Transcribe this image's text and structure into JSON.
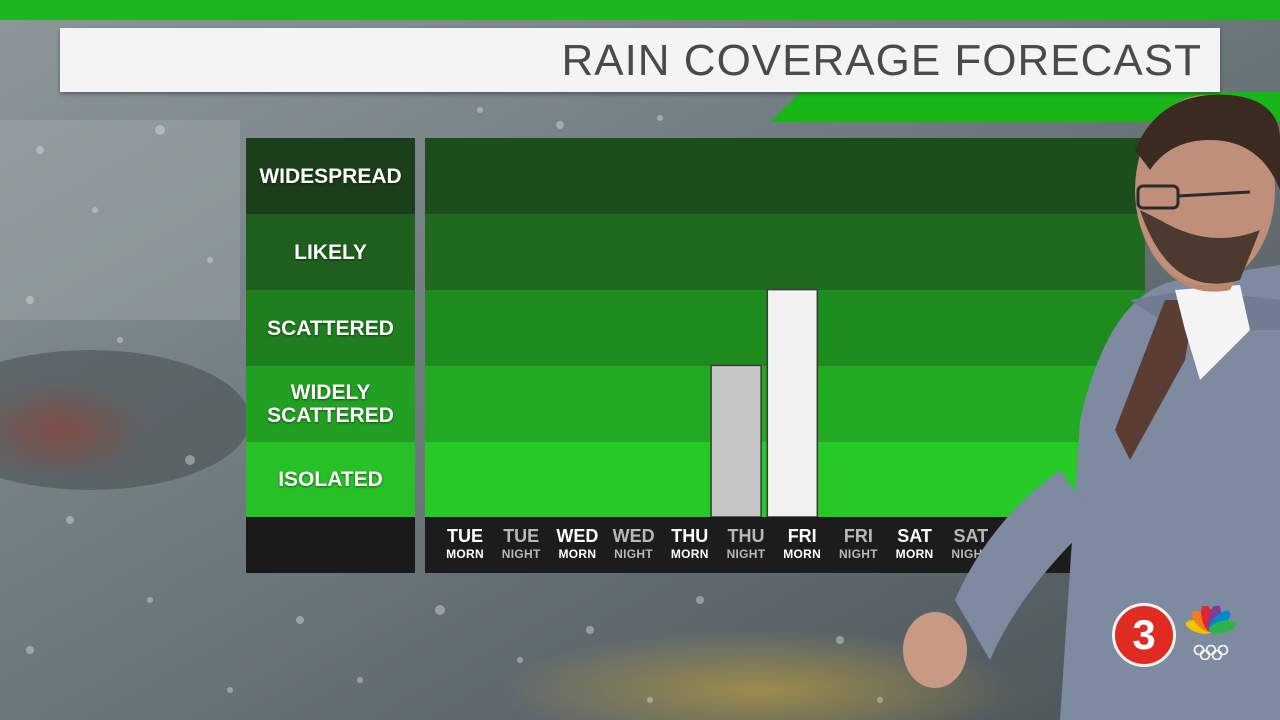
{
  "banner": {
    "title": "RAIN COVERAGE FORECAST"
  },
  "colors": {
    "accent_green": "#1fb51f",
    "band_widespread": "#1c4d1c",
    "band_likely": "#1f6a1f",
    "band_scattered": "#1e8b1e",
    "band_widely_scattered": "#22aa22",
    "band_isolated": "#27c927",
    "bar_thu_night": "#c6c6c6",
    "bar_fri_morn": "#f2f2f2",
    "logo_red": "#e02b22"
  },
  "chart_data": {
    "type": "bar",
    "title": "RAIN COVERAGE FORECAST",
    "levels": [
      "ISOLATED",
      "WIDELY SCATTERED",
      "SCATTERED",
      "LIKELY",
      "WIDESPREAD"
    ],
    "y_labels": [
      {
        "line1": "WIDESPREAD",
        "line2": ""
      },
      {
        "line1": "LIKELY",
        "line2": ""
      },
      {
        "line1": "SCATTERED",
        "line2": ""
      },
      {
        "line1": "WIDELY",
        "line2": "SCATTERED"
      },
      {
        "line1": "ISOLATED",
        "line2": ""
      }
    ],
    "ylim": [
      0,
      5
    ],
    "categories": [
      {
        "day": "TUE",
        "part": "MORN"
      },
      {
        "day": "TUE",
        "part": "NIGHT"
      },
      {
        "day": "WED",
        "part": "MORN"
      },
      {
        "day": "WED",
        "part": "NIGHT"
      },
      {
        "day": "THU",
        "part": "MORN"
      },
      {
        "day": "THU",
        "part": "NIGHT"
      },
      {
        "day": "FRI",
        "part": "MORN"
      },
      {
        "day": "FRI",
        "part": "NIGHT"
      },
      {
        "day": "SAT",
        "part": "MORN"
      },
      {
        "day": "SAT",
        "part": "NIGHT"
      }
    ],
    "values": [
      0,
      0,
      0,
      0,
      0,
      2,
      3,
      0,
      0,
      0
    ]
  },
  "logo": {
    "channel": "3",
    "network_icon": "peacock-icon"
  }
}
